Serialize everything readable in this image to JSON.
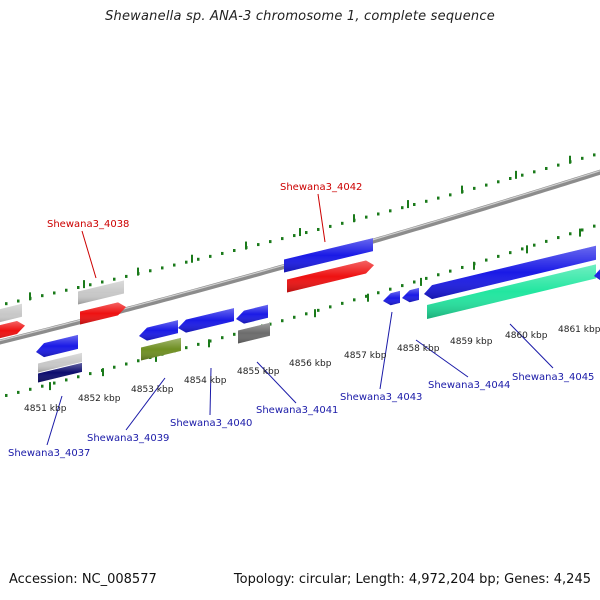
{
  "title": "Shewanella sp. ANA-3 chromosome 1, complete sequence",
  "footer": {
    "accession": "Accession: NC_008577",
    "summary": "Topology: circular; Length: 4,972,204 bp; Genes: 4,245"
  },
  "colors": {
    "forward_label": "#cc0000",
    "reverse_label": "#1a1aa8",
    "backbone": "#8c8c8c",
    "dots": "#1a7a1a",
    "blue": "#1a1ae6",
    "red": "#ee1111",
    "gray": "#c8c8c8",
    "darkgray": "#6c6c6c",
    "olive": "#6f8f22",
    "navy": "#0c0c6e",
    "teal": "#22e6a0"
  },
  "tick_labels": [
    "4851 kbp",
    "4852 kbp",
    "4853 kbp",
    "4854 kbp",
    "4855 kbp",
    "4856 kbp",
    "4857 kbp",
    "4858 kbp",
    "4859 kbp",
    "4860 kbp",
    "4861 kbp"
  ],
  "gene_labels": {
    "forward": [
      "Shewana3_4038",
      "Shewana3_4042"
    ],
    "reverse": [
      "Shewana3_4037",
      "Shewana3_4039",
      "Shewana3_4040",
      "Shewana3_4041",
      "Shewana3_4043",
      "Shewana3_4044",
      "Shewana3_4045"
    ]
  }
}
